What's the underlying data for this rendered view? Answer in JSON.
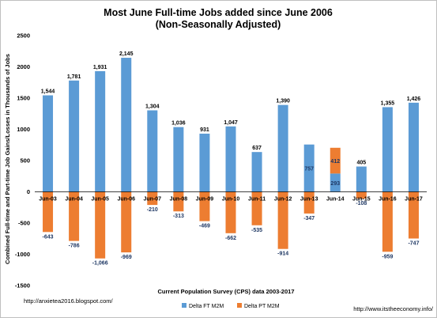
{
  "chart_data": {
    "type": "bar",
    "title": "Most June Full-time Jobs added since June 2006",
    "subtitle": "(Non-Seasonally Adjusted)",
    "ylabel": "Combined Full-time and Part-time Job Gains/Losses in Thousands of Jobs",
    "xlabel": "Current Population Survey (CPS) data 2003-2017",
    "ylim": [
      -1500,
      2500
    ],
    "yticks": [
      2500,
      2000,
      1500,
      1000,
      500,
      0,
      -500,
      -1000,
      -1500
    ],
    "categories": [
      "Jun-03",
      "Jun-04",
      "Jun-05",
      "Jun-06",
      "Jun-07",
      "Jun-08",
      "Jun-09",
      "Jun-10",
      "Jun-11",
      "Jun-12",
      "Jun-13",
      "Jun-14",
      "Jun-15",
      "Jun-16",
      "Jun-17"
    ],
    "series": [
      {
        "name": "Delta FT M2M",
        "color": "#5b9bd5",
        "values": [
          1544,
          1781,
          1931,
          2145,
          1304,
          1036,
          931,
          1047,
          637,
          1390,
          757,
          293,
          405,
          1355,
          1426
        ],
        "labels": [
          "1,544",
          "1,781",
          "1,931",
          "2,145",
          "1,304",
          "1,036",
          "931",
          "1,047",
          "637",
          "1,390",
          "757",
          "293",
          "405",
          "1,355",
          "1,426"
        ]
      },
      {
        "name": "Delta PT M2M",
        "color": "#ed7d31",
        "values": [
          -643,
          -786,
          -1066,
          -969,
          -210,
          -313,
          -469,
          -662,
          -535,
          -914,
          -347,
          412,
          -108,
          -959,
          -747
        ],
        "labels": [
          "-643",
          "-786",
          "-1,066",
          "-969",
          "-210",
          "-313",
          "-469",
          "-662",
          "-535",
          "-914",
          "-347",
          "412",
          "-108",
          "-959",
          "-747"
        ]
      }
    ],
    "legend_position": "bottom",
    "grid": false
  },
  "footer": {
    "left_url": "http://anxietea2016.blogspot.com/",
    "right_url": "http://www.itstheeconomy.info/"
  }
}
